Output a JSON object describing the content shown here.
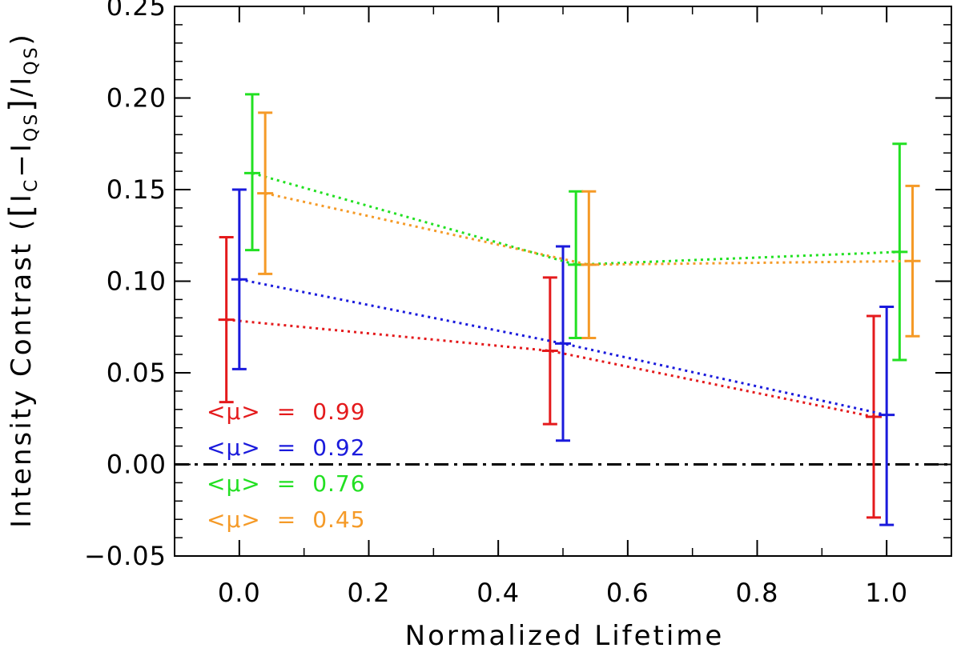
{
  "chart_data": {
    "type": "scatter",
    "title": "",
    "xlabel": "Normalized Lifetime",
    "ylabel": "Intensity Contrast ([I_C−I_QS]/I_QS)",
    "ylabel_parts": {
      "main": "Intensity Contrast (",
      "bracket_open": "[",
      "I1": "I",
      "sub1": "C",
      "minus": "−",
      "I2": "I",
      "sub2": "QS",
      "bracket_close": "]",
      "slash": "/",
      "I3": "I",
      "sub3": "QS",
      "close": ")"
    },
    "xlim": [
      -0.1,
      1.1
    ],
    "ylim": [
      -0.05,
      0.25
    ],
    "xticks": [
      0.0,
      0.2,
      0.4,
      0.6,
      0.8,
      1.0
    ],
    "xtick_labels": [
      "0.0",
      "0.2",
      "0.4",
      "0.6",
      "0.8",
      "1.0"
    ],
    "yticks": [
      -0.05,
      0.0,
      0.05,
      0.1,
      0.15,
      0.2,
      0.25
    ],
    "ytick_labels": [
      "−0.05",
      "0.00",
      "0.05",
      "0.10",
      "0.15",
      "0.20",
      "0.25"
    ],
    "reference_line": {
      "y": 0.0,
      "style": "dash-dot",
      "color": "#000000"
    },
    "series": [
      {
        "name": "<μ> = 0.99",
        "mu": "0.99",
        "color": "#e41a1c",
        "x": [
          -0.02,
          0.48,
          0.98
        ],
        "y": [
          0.079,
          0.062,
          0.026
        ],
        "ylow": [
          0.034,
          0.022,
          -0.029
        ],
        "yhigh": [
          0.124,
          0.102,
          0.081
        ]
      },
      {
        "name": "<μ> = 0.92",
        "mu": "0.92",
        "color": "#1a1adc",
        "x": [
          0.0,
          0.5,
          1.0
        ],
        "y": [
          0.101,
          0.066,
          0.027
        ],
        "ylow": [
          0.052,
          0.013,
          -0.033
        ],
        "yhigh": [
          0.15,
          0.119,
          0.086
        ]
      },
      {
        "name": "<μ> = 0.76",
        "mu": "0.76",
        "color": "#22e022",
        "x": [
          0.02,
          0.52,
          1.02
        ],
        "y": [
          0.159,
          0.109,
          0.116
        ],
        "ylow": [
          0.117,
          0.069,
          0.057
        ],
        "yhigh": [
          0.202,
          0.149,
          0.175
        ]
      },
      {
        "name": "<μ> = 0.45",
        "mu": "0.45",
        "color": "#f59a27",
        "x": [
          0.04,
          0.54,
          1.04
        ],
        "y": [
          0.148,
          0.109,
          0.111
        ],
        "ylow": [
          0.104,
          0.069,
          0.07
        ],
        "yhigh": [
          0.192,
          0.149,
          0.152
        ]
      }
    ],
    "legend": {
      "position": "lower-left",
      "prefix": "<μ>",
      "equals": "=",
      "entries": [
        "0.99",
        "0.92",
        "0.76",
        "0.45"
      ]
    }
  }
}
